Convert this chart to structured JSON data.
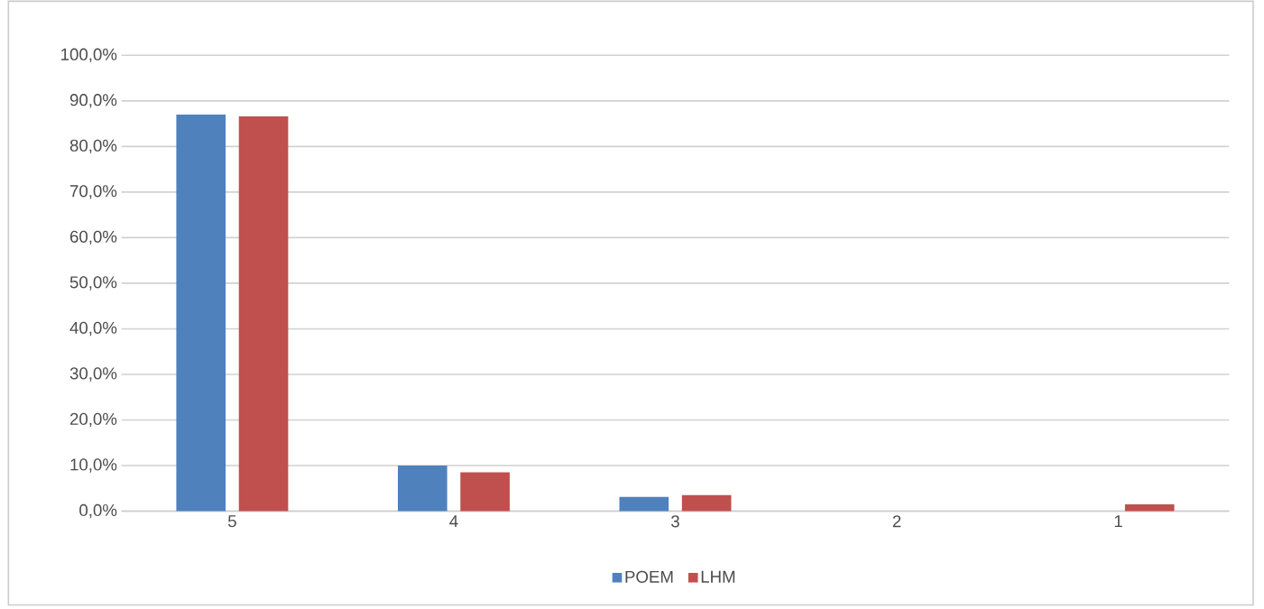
{
  "chart_data": {
    "type": "bar",
    "categories": [
      "5",
      "4",
      "3",
      "2",
      "1"
    ],
    "series": [
      {
        "name": "POEM",
        "color": "#4f81bd",
        "values": [
          87.0,
          10.0,
          3.1,
          0,
          0
        ]
      },
      {
        "name": "LHM",
        "color": "#c0504d",
        "values": [
          86.6,
          8.5,
          3.5,
          0,
          1.5
        ]
      }
    ],
    "ylim": [
      0,
      100
    ],
    "yticks": [
      {
        "value": 0,
        "label": "0,0%"
      },
      {
        "value": 10,
        "label": "10,0%"
      },
      {
        "value": 20,
        "label": "20,0%"
      },
      {
        "value": 30,
        "label": "30,0%"
      },
      {
        "value": 40,
        "label": "40,0%"
      },
      {
        "value": 50,
        "label": "50,0%"
      },
      {
        "value": 60,
        "label": "60,0%"
      },
      {
        "value": 70,
        "label": "70,0%"
      },
      {
        "value": 80,
        "label": "80,0%"
      },
      {
        "value": 90,
        "label": "90,0%"
      },
      {
        "value": 100,
        "label": "100,0%"
      }
    ],
    "grid": "y",
    "legend": "bottom"
  }
}
